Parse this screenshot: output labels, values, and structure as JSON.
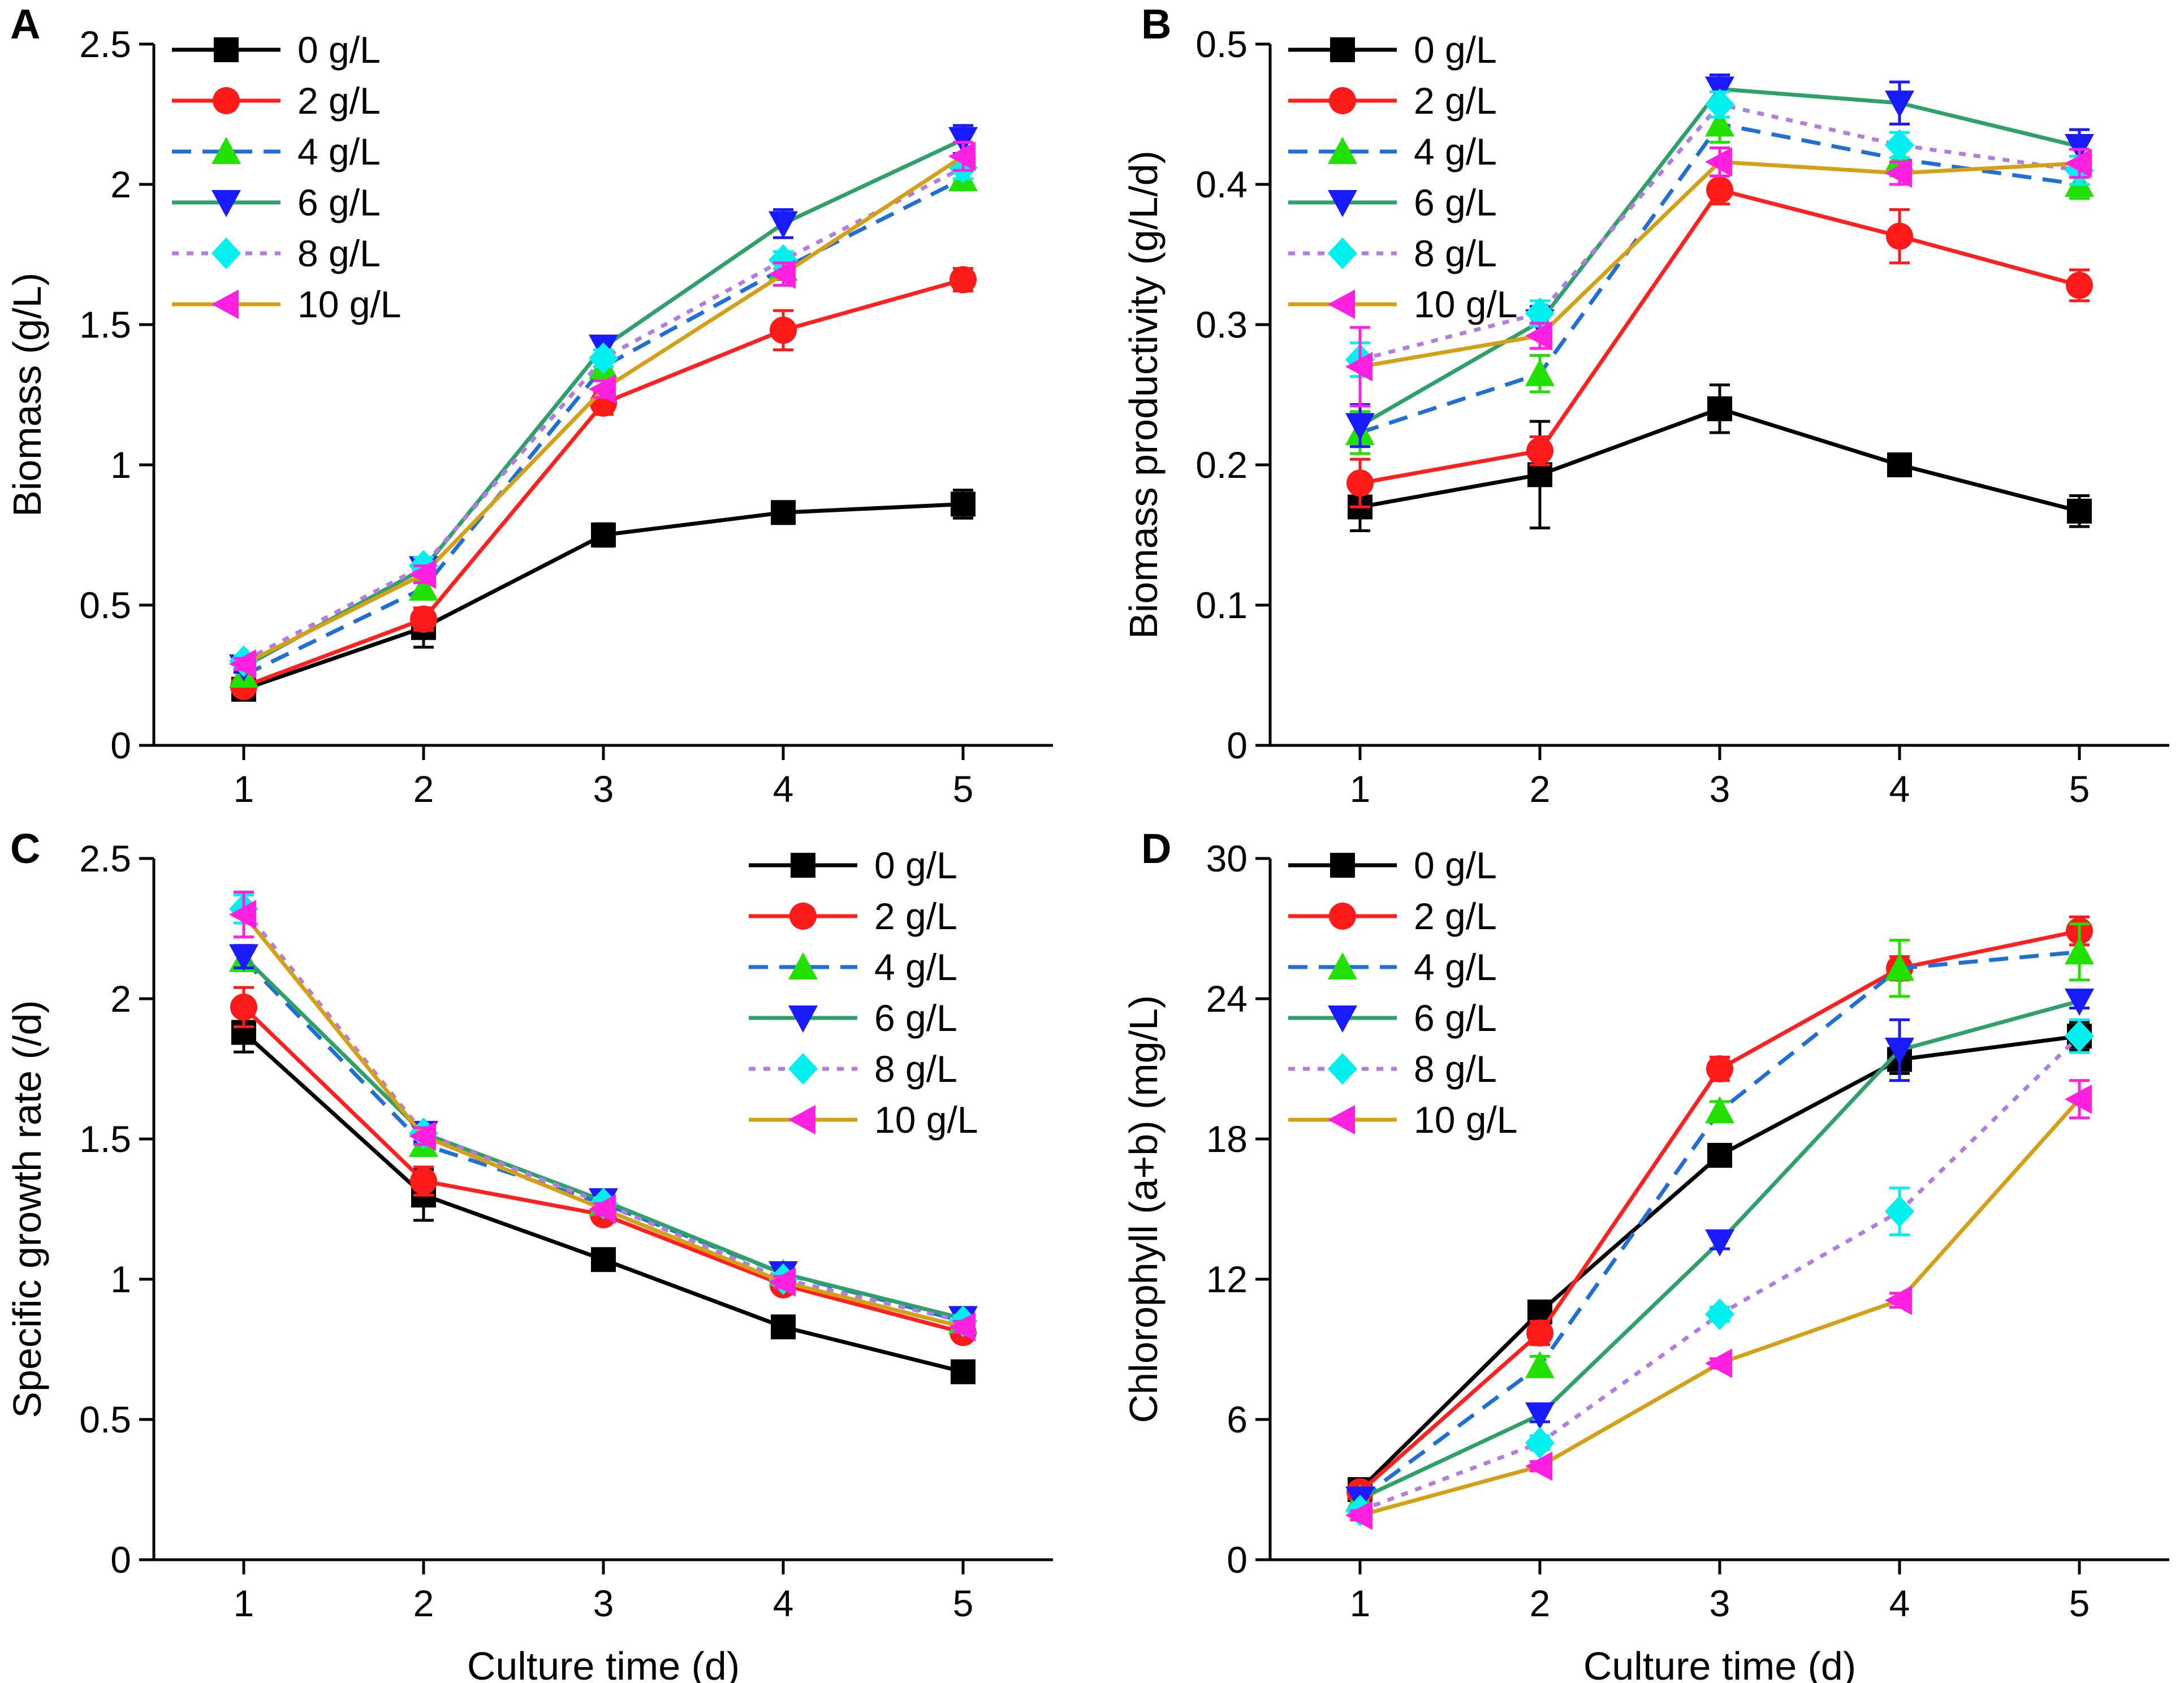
{
  "series_styles": [
    {
      "name": "0 g/L",
      "color": "#000000",
      "marker": "square",
      "dash": ""
    },
    {
      "name": "2 g/L",
      "color": "#ff2020",
      "marker": "circle",
      "dash": ""
    },
    {
      "name": "4 g/L",
      "color": "#1f6fd6",
      "marker": "triangle-up",
      "dash": "dash"
    },
    {
      "name": "6 g/L",
      "color": "#2ea06a",
      "marker": "triangle-down",
      "dash": ""
    },
    {
      "name": "8 g/L",
      "color": "#b07de0",
      "marker": "diamond",
      "dash": "dot"
    },
    {
      "name": "10 g/L",
      "color": "#d4a017",
      "marker": "triangle-left",
      "dash": ""
    }
  ],
  "marker_colors": {
    "0 g/L": "#000000",
    "2 g/L": "#ff1a1a",
    "4 g/L": "#22e000",
    "6 g/L": "#1a1aff",
    "8 g/L": "#00f0f0",
    "10 g/L": "#ff20e0"
  },
  "chart_data": [
    {
      "id": "A",
      "type": "line",
      "panel_label": "A",
      "xlabel": "",
      "ylabel": "Biomass (g/L)",
      "x": [
        1,
        2,
        3,
        4,
        5
      ],
      "xlim": [
        0.5,
        5.5
      ],
      "ylim": [
        0,
        2.5
      ],
      "yticks": [
        "0",
        "0.5",
        "1",
        "1.5",
        "2",
        "2.5"
      ],
      "ytick_values": [
        0,
        0.5,
        1,
        1.5,
        2,
        2.5
      ],
      "legend_position": "top-left",
      "series": [
        {
          "name": "0 g/L",
          "values": [
            0.2,
            0.42,
            0.75,
            0.83,
            0.86
          ],
          "errors": [
            0.02,
            0.07,
            0.04,
            0.02,
            0.05
          ]
        },
        {
          "name": "2 g/L",
          "values": [
            0.21,
            0.45,
            1.22,
            1.48,
            1.66
          ],
          "errors": [
            0.02,
            0.04,
            0.04,
            0.07,
            0.04
          ]
        },
        {
          "name": "4 g/L",
          "values": [
            0.25,
            0.56,
            1.35,
            1.7,
            2.02
          ],
          "errors": [
            0.02,
            0.03,
            0.04,
            0.04,
            0.04
          ]
        },
        {
          "name": "6 g/L",
          "values": [
            0.28,
            0.63,
            1.42,
            1.86,
            2.16
          ],
          "errors": [
            0.02,
            0.03,
            0.03,
            0.05,
            0.05
          ]
        },
        {
          "name": "8 g/L",
          "values": [
            0.3,
            0.64,
            1.38,
            1.73,
            2.06
          ],
          "errors": [
            0.02,
            0.03,
            0.03,
            0.03,
            0.04
          ]
        },
        {
          "name": "10 g/L",
          "values": [
            0.29,
            0.61,
            1.27,
            1.68,
            2.1
          ],
          "errors": [
            0.02,
            0.03,
            0.03,
            0.04,
            0.05
          ]
        }
      ]
    },
    {
      "id": "B",
      "type": "line",
      "panel_label": "B",
      "xlabel": "",
      "ylabel": "Biomass productivity (g/L/d)",
      "x": [
        1,
        2,
        3,
        4,
        5
      ],
      "xlim": [
        0.5,
        5.5
      ],
      "ylim": [
        0,
        0.5
      ],
      "yticks": [
        "0",
        "0.1",
        "0.2",
        "0.3",
        "0.4",
        "0.5"
      ],
      "ytick_values": [
        0,
        0.1,
        0.2,
        0.3,
        0.4,
        0.5
      ],
      "legend_position": "top-left",
      "series": [
        {
          "name": "0 g/L",
          "values": [
            0.17,
            0.193,
            0.24,
            0.2,
            0.167
          ],
          "errors": [
            0.017,
            0.038,
            0.017,
            0.006,
            0.011
          ]
        },
        {
          "name": "2 g/L",
          "values": [
            0.187,
            0.21,
            0.396,
            0.363,
            0.328
          ],
          "errors": [
            0.017,
            0.01,
            0.01,
            0.019,
            0.011
          ]
        },
        {
          "name": "4 g/L",
          "values": [
            0.223,
            0.265,
            0.443,
            0.418,
            0.4
          ],
          "errors": [
            0.015,
            0.013,
            0.013,
            0.012,
            0.01
          ]
        },
        {
          "name": "6 g/L",
          "values": [
            0.228,
            0.302,
            0.468,
            0.458,
            0.427
          ],
          "errors": [
            0.015,
            0.011,
            0.01,
            0.015,
            0.012
          ]
        },
        {
          "name": "8 g/L",
          "values": [
            0.275,
            0.308,
            0.457,
            0.428,
            0.41
          ],
          "errors": [
            0.012,
            0.009,
            0.009,
            0.009,
            0.01
          ]
        },
        {
          "name": "10 g/L",
          "values": [
            0.27,
            0.292,
            0.416,
            0.408,
            0.415
          ],
          "errors": [
            0.028,
            0.009,
            0.01,
            0.008,
            0.01
          ]
        }
      ]
    },
    {
      "id": "C",
      "type": "line",
      "panel_label": "C",
      "xlabel": "Culture time (d)",
      "ylabel": "Specific growth rate (/d)",
      "x": [
        1,
        2,
        3,
        4,
        5
      ],
      "xlim": [
        0.5,
        5.5
      ],
      "ylim": [
        0,
        2.5
      ],
      "yticks": [
        "0",
        "0.5",
        "1",
        "1.5",
        "2",
        "2.5"
      ],
      "ytick_values": [
        0,
        0.5,
        1,
        1.5,
        2,
        2.5
      ],
      "legend_position": "top-right",
      "series": [
        {
          "name": "0 g/L",
          "values": [
            1.88,
            1.3,
            1.07,
            0.83,
            0.67
          ],
          "errors": [
            0.07,
            0.09,
            0.02,
            0.02,
            0.02
          ]
        },
        {
          "name": "2 g/L",
          "values": [
            1.97,
            1.35,
            1.23,
            0.98,
            0.81
          ],
          "errors": [
            0.07,
            0.05,
            0.02,
            0.02,
            0.02
          ]
        },
        {
          "name": "4 g/L",
          "values": [
            2.14,
            1.48,
            1.27,
            1.02,
            0.85
          ],
          "errors": [
            0.04,
            0.03,
            0.02,
            0.02,
            0.02
          ]
        },
        {
          "name": "6 g/L",
          "values": [
            2.15,
            1.52,
            1.28,
            1.02,
            0.86
          ],
          "errors": [
            0.04,
            0.03,
            0.02,
            0.02,
            0.02
          ]
        },
        {
          "name": "8 g/L",
          "values": [
            2.32,
            1.52,
            1.27,
            1.0,
            0.85
          ],
          "errors": [
            0.05,
            0.02,
            0.02,
            0.02,
            0.02
          ]
        },
        {
          "name": "10 g/L",
          "values": [
            2.3,
            1.51,
            1.25,
            0.99,
            0.83
          ],
          "errors": [
            0.08,
            0.03,
            0.02,
            0.02,
            0.02
          ]
        }
      ]
    },
    {
      "id": "D",
      "type": "line",
      "panel_label": "D",
      "xlabel": "Culture time (d)",
      "ylabel": "Chlorophyll (a+b) (mg/L)",
      "x": [
        1,
        2,
        3,
        4,
        5
      ],
      "xlim": [
        0.5,
        5.5
      ],
      "ylim": [
        0,
        30
      ],
      "yticks": [
        "0",
        "6",
        "12",
        "18",
        "24",
        "30"
      ],
      "ytick_values": [
        0,
        6,
        12,
        18,
        24,
        30
      ],
      "legend_position": "top-left",
      "series": [
        {
          "name": "0 g/L",
          "values": [
            3.0,
            10.6,
            17.3,
            21.4,
            22.4
          ],
          "errors": [
            0.3,
            0.3,
            0.3,
            0.6,
            0.6
          ]
        },
        {
          "name": "2 g/L",
          "values": [
            2.9,
            9.7,
            21.0,
            25.3,
            26.9
          ],
          "errors": [
            0.3,
            0.5,
            0.5,
            0.5,
            0.6
          ]
        },
        {
          "name": "4 g/L",
          "values": [
            2.6,
            8.3,
            19.2,
            25.3,
            26.0
          ],
          "errors": [
            0.3,
            0.4,
            0.4,
            1.2,
            1.2
          ]
        },
        {
          "name": "6 g/L",
          "values": [
            2.6,
            6.2,
            13.6,
            21.8,
            23.9
          ],
          "errors": [
            0.3,
            0.3,
            0.3,
            1.3,
            0.3
          ]
        },
        {
          "name": "8 g/L",
          "values": [
            2.1,
            5.0,
            10.5,
            14.9,
            22.4
          ],
          "errors": [
            0.2,
            0.3,
            0.3,
            1.0,
            0.7
          ]
        },
        {
          "name": "10 g/L",
          "values": [
            1.9,
            4.0,
            8.4,
            11.1,
            19.7
          ],
          "errors": [
            0.2,
            0.2,
            0.2,
            0.3,
            0.8
          ]
        }
      ]
    }
  ]
}
